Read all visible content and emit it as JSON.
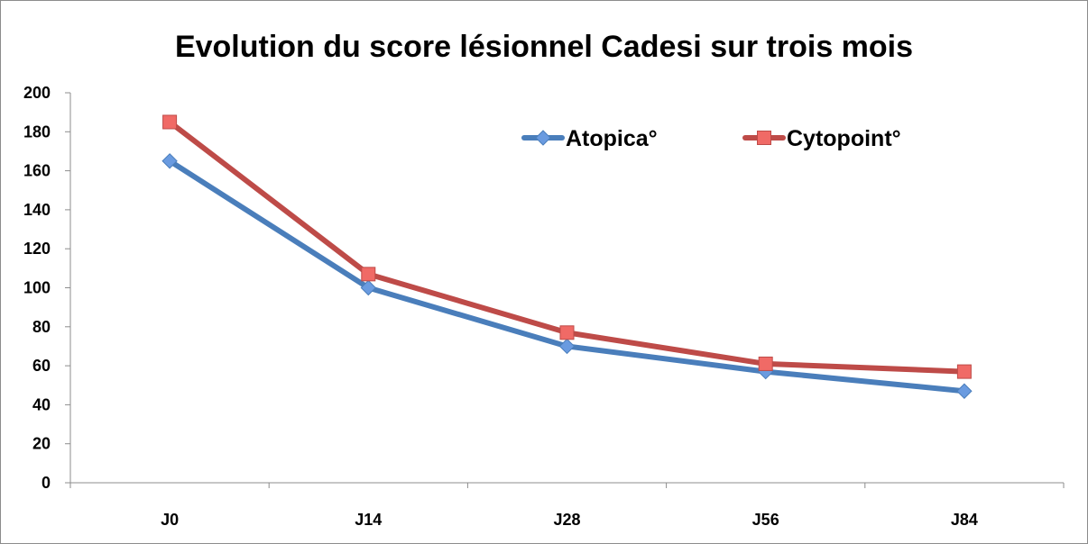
{
  "chart_data": {
    "type": "line",
    "title": "Evolution du score lésionnel Cadesi sur trois mois",
    "categories": [
      "J0",
      "J14",
      "J28",
      "J56",
      "J84"
    ],
    "series": [
      {
        "name": "Atopica°",
        "values": [
          165,
          100,
          70,
          57,
          47
        ],
        "color": "#4a7ebb",
        "marker": "diamond",
        "marker_color": "#6a9be0"
      },
      {
        "name": "Cytopoint°",
        "values": [
          185,
          107,
          77,
          61,
          57
        ],
        "color": "#be4b48",
        "marker": "square",
        "marker_color": "#f06a66"
      }
    ],
    "y_ticks": [
      "0",
      "20",
      "40",
      "60",
      "80",
      "100",
      "120",
      "140",
      "160",
      "180",
      "200"
    ],
    "ylim": [
      0,
      200
    ],
    "grid": false,
    "legend_position": "top-right"
  }
}
